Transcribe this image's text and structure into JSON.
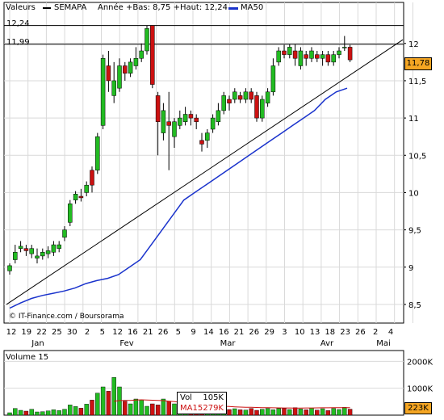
{
  "header": {
    "valeurs_label": "Valeurs",
    "ticker": "SEMAPA",
    "range_text": "Année +Bas: 8,75 +Haut: 12,24",
    "ma_label": "MA50"
  },
  "colors": {
    "up": "#22bb22",
    "down": "#cc1111",
    "ma50": "#1a33cc",
    "trend": "#000000",
    "grid": "#d9d9d9",
    "volume_ma": "#cc1111",
    "price_box_bg": "#f5a623"
  },
  "price_panel": {
    "ylim": [
      8.25,
      12.55
    ],
    "yticks": [
      "8,5",
      "9",
      "9,5",
      "10",
      "10,5",
      "11",
      "11,5",
      "12"
    ],
    "ytick_values": [
      8.5,
      9,
      9.5,
      10,
      10.5,
      11,
      11.5,
      12
    ],
    "ref_lines": [
      {
        "label": "12,24",
        "value": 12.24
      },
      {
        "label": "11,99",
        "value": 11.99
      }
    ],
    "last_price_label": "11,78",
    "last_price_value": 11.78,
    "source": "© IT-Finance.com / Boursorama"
  },
  "xaxis": {
    "day_labels": [
      "12",
      "19",
      "22",
      "25",
      "30",
      "2",
      "5",
      "12",
      "16",
      "21",
      "26",
      "5",
      "9",
      "14",
      "16",
      "21",
      "26",
      "29",
      "3",
      "10",
      "13",
      "18",
      "23",
      "26",
      "2",
      "4"
    ],
    "month_labels": [
      "Jan",
      "Fev",
      "Mar",
      "Avr",
      "Mai"
    ]
  },
  "volume_panel": {
    "title": "Volume 15",
    "yticks": [
      "2000K",
      "1000K"
    ],
    "last_volume_label": "223K",
    "vol_box_label": "Vol",
    "vol_box_value": "105K",
    "ma_box_label": "MA15",
    "ma_box_value": "279K"
  },
  "chart_data": {
    "type": "candlestick",
    "title": "SEMAPA",
    "series": [
      {
        "name": "MA50",
        "values": [
          8.45,
          8.52,
          8.58,
          8.62,
          8.65,
          8.68,
          8.72,
          8.78,
          8.82,
          8.85,
          8.9,
          9.0,
          9.1,
          9.3,
          9.5,
          9.7,
          9.9,
          10.0,
          10.1,
          10.2,
          10.3,
          10.4,
          10.5,
          10.6,
          10.7,
          10.8,
          10.9,
          11.0,
          11.1,
          11.25,
          11.35,
          11.4
        ]
      }
    ],
    "candles_note": "open/close/high/low per session (Jan–Apr)",
    "candles": [
      [
        8.95,
        9.02,
        9.05,
        8.9
      ],
      [
        9.1,
        9.2,
        9.3,
        9.05
      ],
      [
        9.25,
        9.28,
        9.35,
        9.2
      ],
      [
        9.25,
        9.22,
        9.3,
        9.15
      ],
      [
        9.18,
        9.25,
        9.3,
        9.12
      ],
      [
        9.12,
        9.15,
        9.25,
        9.05
      ],
      [
        9.15,
        9.2,
        9.25,
        9.1
      ],
      [
        9.18,
        9.22,
        9.28,
        9.12
      ],
      [
        9.2,
        9.3,
        9.35,
        9.15
      ],
      [
        9.25,
        9.3,
        9.35,
        9.2
      ],
      [
        9.4,
        9.5,
        9.55,
        9.35
      ],
      [
        9.6,
        9.85,
        9.9,
        9.55
      ],
      [
        9.9,
        9.98,
        10.02,
        9.85
      ],
      [
        9.95,
        9.93,
        10.05,
        9.88
      ],
      [
        10.0,
        10.1,
        10.15,
        9.95
      ],
      [
        10.3,
        10.1,
        10.35,
        10.0
      ],
      [
        10.3,
        10.75,
        10.8,
        10.25
      ],
      [
        10.9,
        11.8,
        11.85,
        10.85
      ],
      [
        11.7,
        11.5,
        11.9,
        11.35
      ],
      [
        11.3,
        11.5,
        11.75,
        11.2
      ],
      [
        11.4,
        11.7,
        11.8,
        11.35
      ],
      [
        11.7,
        11.6,
        11.75,
        11.5
      ],
      [
        11.6,
        11.75,
        11.8,
        11.55
      ],
      [
        11.7,
        11.8,
        11.95,
        11.65
      ],
      [
        11.8,
        11.9,
        12.0,
        11.75
      ],
      [
        11.9,
        12.2,
        12.24,
        11.85
      ],
      [
        12.24,
        11.45,
        12.24,
        11.4
      ],
      [
        11.3,
        10.95,
        11.35,
        10.5
      ],
      [
        10.8,
        11.1,
        11.2,
        10.7
      ],
      [
        10.95,
        10.9,
        11.35,
        10.3
      ],
      [
        10.75,
        10.95,
        11.0,
        10.6
      ],
      [
        10.9,
        11.0,
        11.1,
        10.85
      ],
      [
        10.95,
        11.05,
        11.15,
        10.9
      ],
      [
        11.05,
        11.0,
        11.1,
        10.9
      ],
      [
        11.0,
        10.95,
        11.05,
        10.85
      ],
      [
        10.7,
        10.65,
        10.8,
        10.55
      ],
      [
        10.7,
        10.8,
        10.85,
        10.6
      ],
      [
        10.85,
        11.0,
        11.05,
        10.8
      ],
      [
        10.95,
        11.1,
        11.2,
        10.9
      ],
      [
        11.1,
        11.3,
        11.35,
        11.05
      ],
      [
        11.25,
        11.2,
        11.3,
        11.1
      ],
      [
        11.25,
        11.35,
        11.4,
        11.2
      ],
      [
        11.3,
        11.25,
        11.35,
        11.2
      ],
      [
        11.25,
        11.35,
        11.4,
        11.2
      ],
      [
        11.35,
        11.25,
        11.4,
        11.2
      ],
      [
        11.3,
        11.0,
        11.35,
        10.95
      ],
      [
        11.0,
        11.25,
        11.3,
        10.95
      ],
      [
        11.2,
        11.35,
        11.4,
        11.15
      ],
      [
        11.35,
        11.7,
        11.8,
        11.3
      ],
      [
        11.75,
        11.9,
        11.95,
        11.7
      ],
      [
        11.9,
        11.85,
        11.98,
        11.8
      ],
      [
        11.85,
        11.95,
        11.99,
        11.8
      ],
      [
        11.9,
        11.8,
        11.99,
        11.7
      ],
      [
        11.7,
        11.9,
        11.95,
        11.65
      ],
      [
        11.85,
        11.8,
        11.9,
        11.7
      ],
      [
        11.8,
        11.9,
        11.95,
        11.75
      ],
      [
        11.85,
        11.8,
        11.9,
        11.75
      ],
      [
        11.8,
        11.85,
        11.9,
        11.7
      ],
      [
        11.85,
        11.75,
        11.9,
        11.7
      ],
      [
        11.75,
        11.85,
        11.9,
        11.7
      ],
      [
        11.85,
        11.9,
        11.95,
        11.8
      ],
      [
        11.95,
        11.95,
        12.1,
        11.9
      ],
      [
        11.95,
        11.78,
        11.98,
        11.75
      ]
    ],
    "volume_k": [
      90,
      250,
      180,
      150,
      220,
      120,
      130,
      160,
      200,
      170,
      220,
      380,
      320,
      260,
      410,
      560,
      820,
      1050,
      890,
      1400,
      1050,
      520,
      420,
      600,
      560,
      330,
      420,
      380,
      600,
      520,
      420,
      300,
      270,
      330,
      250,
      300,
      240,
      280,
      230,
      300,
      210,
      240,
      200,
      190,
      250,
      180,
      220,
      250,
      200,
      250,
      250,
      210,
      280,
      230,
      200,
      260,
      190,
      240,
      170,
      250,
      210,
      290,
      223
    ],
    "volume_ma_k": [
      0,
      0,
      0,
      0,
      0,
      0,
      0,
      0,
      0,
      0,
      0,
      0,
      0,
      0,
      0,
      0,
      0,
      0,
      0,
      520,
      540,
      545,
      550,
      560,
      570,
      560,
      555,
      545,
      540,
      520,
      500,
      480,
      460,
      440,
      420,
      400,
      380,
      360,
      345,
      330,
      320,
      310,
      300,
      295,
      290,
      285,
      280,
      275,
      272,
      270,
      268,
      266,
      265,
      265,
      266,
      268,
      270,
      272,
      274,
      276,
      277,
      278,
      279
    ]
  }
}
